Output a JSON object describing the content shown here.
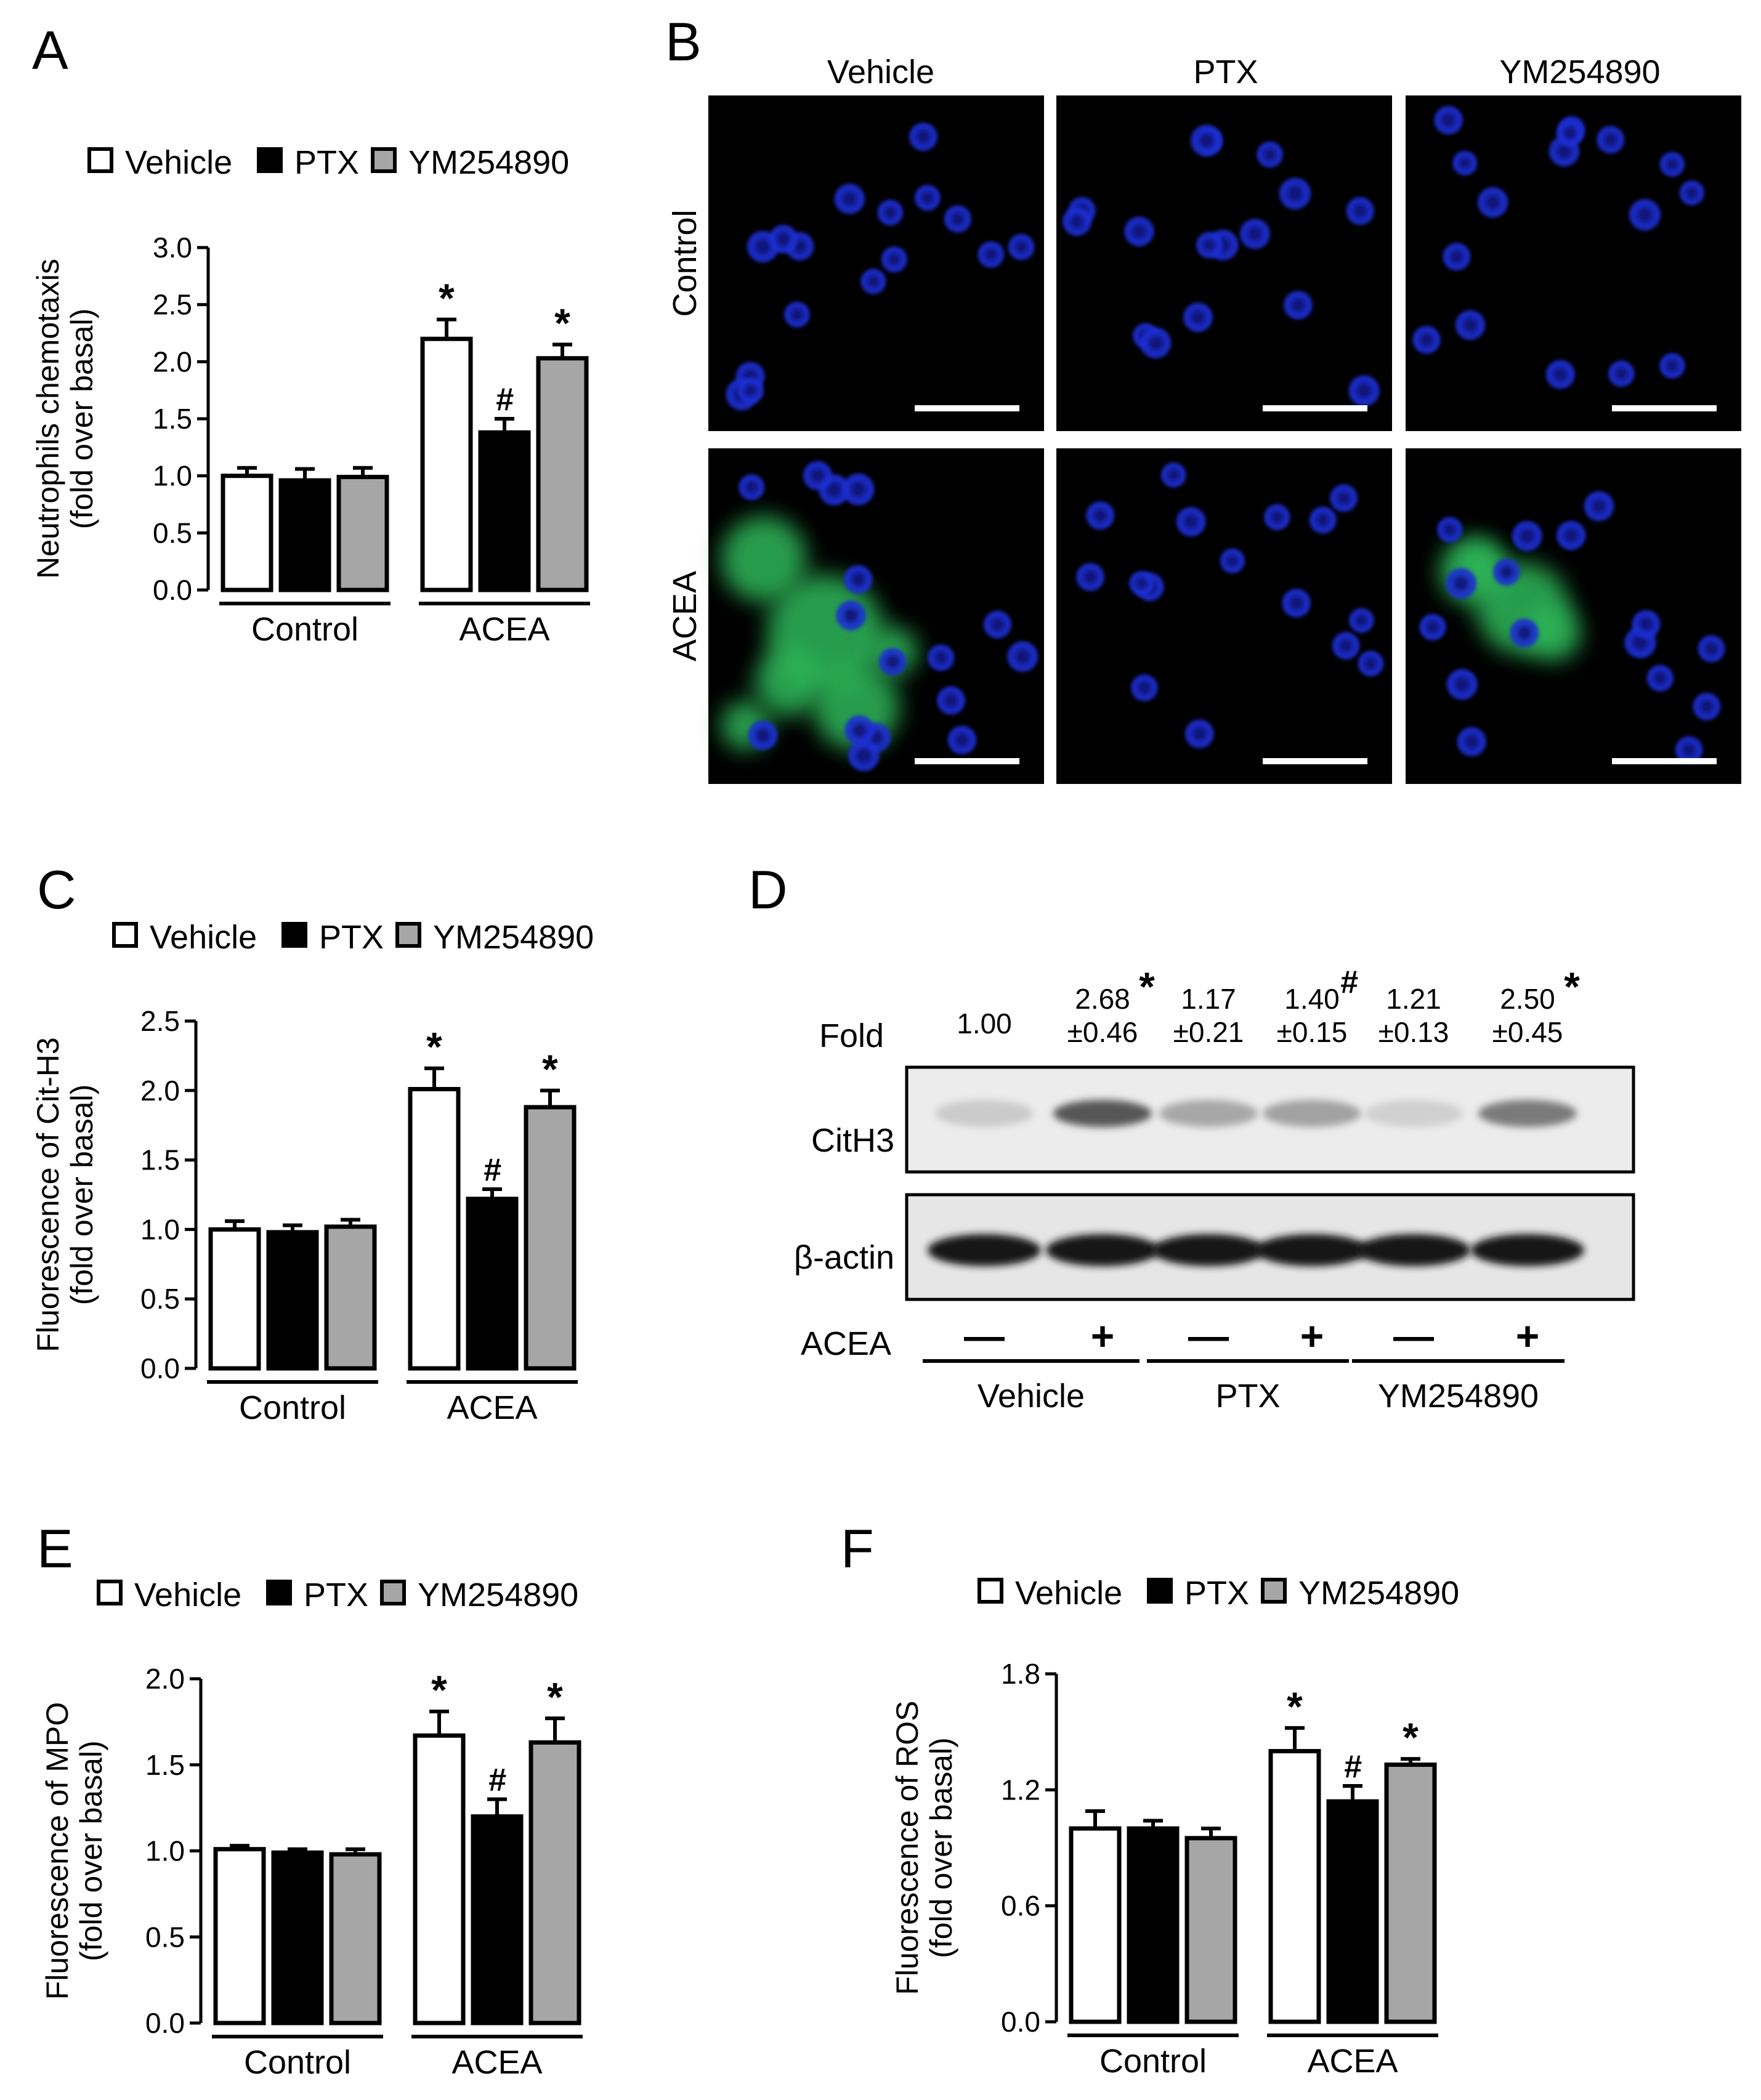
{
  "panels": {
    "A": "A",
    "B": "B",
    "C": "C",
    "D": "D",
    "E": "E",
    "F": "F"
  },
  "legend": [
    "Vehicle",
    "PTX",
    "YM254890"
  ],
  "colors": {
    "vehicle": "#ffffff",
    "ptx": "#000000",
    "ym": "#a6a6a6"
  },
  "groups": [
    "Control",
    "ACEA"
  ],
  "chart_data": [
    {
      "id": "A",
      "type": "bar",
      "categories": [
        "Control",
        "ACEA"
      ],
      "series": [
        {
          "name": "Vehicle",
          "values": [
            1.0,
            2.2
          ],
          "errors": [
            0.07,
            0.17
          ]
        },
        {
          "name": "PTX",
          "values": [
            0.96,
            1.38
          ],
          "errors": [
            0.1,
            0.12
          ]
        },
        {
          "name": "YM254890",
          "values": [
            0.99,
            2.03
          ],
          "errors": [
            0.08,
            0.12
          ]
        }
      ],
      "marks": [
        [
          "",
          ""
        ],
        [
          "",
          "#"
        ],
        [
          "",
          ""
        ]
      ],
      "stars": [
        [
          "",
          "*"
        ],
        [
          "",
          ""
        ],
        [
          "",
          "*"
        ]
      ],
      "ylabel": "Neutrophils chemotaxis",
      "ylabel2": "(fold over basal)",
      "ylim": [
        0,
        3.0
      ],
      "yticks": [
        "0.0",
        "0.5",
        "1.0",
        "1.5",
        "2.0",
        "2.5",
        "3.0"
      ]
    },
    {
      "id": "C",
      "type": "bar",
      "categories": [
        "Control",
        "ACEA"
      ],
      "series": [
        {
          "name": "Vehicle",
          "values": [
            1.0,
            2.01
          ],
          "errors": [
            0.06,
            0.15
          ]
        },
        {
          "name": "PTX",
          "values": [
            0.98,
            1.22
          ],
          "errors": [
            0.05,
            0.07
          ]
        },
        {
          "name": "YM254890",
          "values": [
            1.02,
            1.88
          ],
          "errors": [
            0.05,
            0.12
          ]
        }
      ],
      "marks": [
        [
          "",
          ""
        ],
        [
          "",
          "#"
        ],
        [
          "",
          ""
        ]
      ],
      "stars": [
        [
          "",
          "*"
        ],
        [
          "",
          ""
        ],
        [
          "",
          "*"
        ]
      ],
      "ylabel": "Fluorescence of Cit-H3",
      "ylabel2": "(fold over basal)",
      "ylim": [
        0,
        2.5
      ],
      "yticks": [
        "0.0",
        "0.5",
        "1.0",
        "1.5",
        "2.0",
        "2.5"
      ]
    },
    {
      "id": "E",
      "type": "bar",
      "categories": [
        "Control",
        "ACEA"
      ],
      "series": [
        {
          "name": "Vehicle",
          "values": [
            1.01,
            1.67
          ],
          "errors": [
            0.02,
            0.14
          ]
        },
        {
          "name": "PTX",
          "values": [
            0.99,
            1.2
          ],
          "errors": [
            0.02,
            0.1
          ]
        },
        {
          "name": "YM254890",
          "values": [
            0.98,
            1.63
          ],
          "errors": [
            0.03,
            0.14
          ]
        }
      ],
      "marks": [
        [
          "",
          ""
        ],
        [
          "",
          "#"
        ],
        [
          "",
          ""
        ]
      ],
      "stars": [
        [
          "",
          "*"
        ],
        [
          "",
          ""
        ],
        [
          "",
          "*"
        ]
      ],
      "ylabel": "Fluorescence of MPO",
      "ylabel2": "(fold over basal)",
      "ylim": [
        0,
        2.0
      ],
      "yticks": [
        "0.0",
        "0.5",
        "1.0",
        "1.5",
        "2.0"
      ]
    },
    {
      "id": "F",
      "type": "bar",
      "categories": [
        "Control",
        "ACEA"
      ],
      "series": [
        {
          "name": "Vehicle",
          "values": [
            1.0,
            1.4
          ],
          "errors": [
            0.09,
            0.12
          ]
        },
        {
          "name": "PTX",
          "values": [
            1.0,
            1.14
          ],
          "errors": [
            0.04,
            0.08
          ]
        },
        {
          "name": "YM254890",
          "values": [
            0.95,
            1.33
          ],
          "errors": [
            0.05,
            0.03
          ]
        }
      ],
      "marks": [
        [
          "",
          ""
        ],
        [
          "",
          "#"
        ],
        [
          "",
          ""
        ]
      ],
      "stars": [
        [
          "",
          "*"
        ],
        [
          "",
          ""
        ],
        [
          "",
          "*"
        ]
      ],
      "ylabel": "Fluorescence of ROS",
      "ylabel2": "(fold over basal)",
      "ylim": [
        0,
        1.8
      ],
      "yticks": [
        "0.0",
        "0.6",
        "1.2",
        "1.8"
      ]
    }
  ],
  "micro": {
    "columns": [
      "Vehicle",
      "PTX",
      "YM254890"
    ],
    "rows": [
      "Control",
      "ACEA"
    ],
    "nucleus_color": "#1f2fd0",
    "net_color": "#2fb85a",
    "background": "#000000"
  },
  "western": {
    "fold_label": "Fold",
    "fold_values": [
      "1.00",
      "2.68",
      "1.17",
      "1.40",
      "1.21",
      "2.50"
    ],
    "fold_errors": [
      "",
      "±0.46",
      "±0.21",
      "±0.15",
      "±0.13",
      "±0.45"
    ],
    "fold_marks": [
      "",
      "*",
      "",
      "#",
      "",
      "*"
    ],
    "rows": [
      "CitH3",
      "β-actin"
    ],
    "treatment_label": "ACEA",
    "signs": [
      "—",
      "+",
      "—",
      "+",
      "—",
      "+"
    ],
    "groups": [
      "Vehicle",
      "PTX",
      "YM254890"
    ],
    "citH3_intensity": [
      0.15,
      0.8,
      0.35,
      0.38,
      0.12,
      0.6
    ]
  }
}
